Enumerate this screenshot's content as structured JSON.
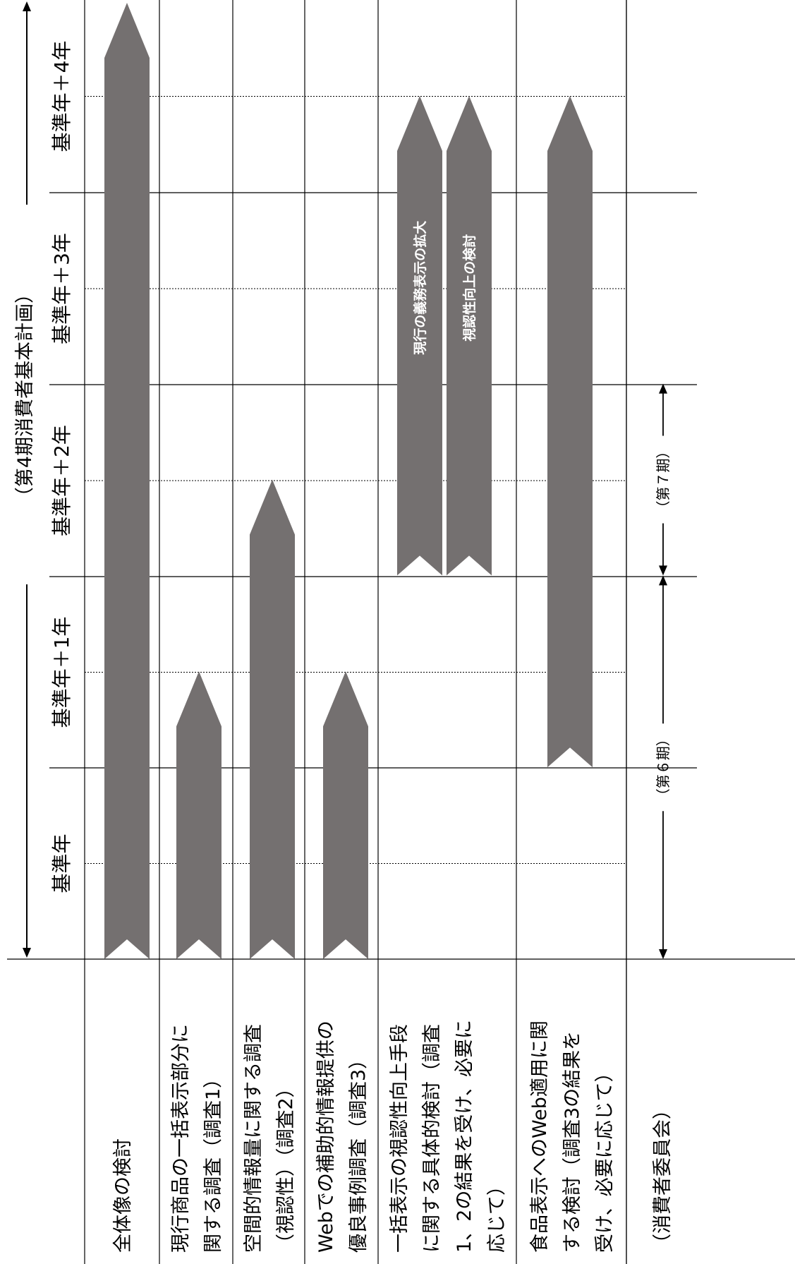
{
  "plan_label": "（第4期消費者基本計画）",
  "years": [
    "基準年",
    "基準年＋1年",
    "基準年＋2年",
    "基準年＋3年",
    "基準年＋4年"
  ],
  "rows": [
    {
      "lines": [
        "全体像の検討"
      ]
    },
    {
      "lines": [
        "現行商品の一括表示部分に",
        "関する調査（調査1）"
      ]
    },
    {
      "lines": [
        "空間的情報量に関する調査",
        "（視認性）（調査2）"
      ]
    },
    {
      "lines": [
        "Webでの補助的情報提供の",
        "優良事例調査（調査3）"
      ]
    },
    {
      "lines": [
        "一括表示の視認性向上手段",
        "に関する具体的検討（調査",
        "1、2の結果を受け、必要に",
        "応じて）"
      ]
    },
    {
      "lines": [
        "食品表示へのWeb適用に関",
        "する検討（調査3の結果を",
        "受け、必要に応じて）"
      ]
    },
    {
      "lines": [
        "（消費者委員会）"
      ]
    }
  ],
  "bars": [
    {
      "row": 0,
      "start_year": 0,
      "end_year": 4.5,
      "label": ""
    },
    {
      "row": 1,
      "start_year": 0,
      "end_year": 1.5,
      "label": ""
    },
    {
      "row": 2,
      "start_year": 0,
      "end_year": 2.5,
      "label": ""
    },
    {
      "row": 3,
      "start_year": 0,
      "end_year": 1.5,
      "label": ""
    },
    {
      "row": 4,
      "start_year": 2,
      "end_year": 4.5,
      "label": "現行の義務表示の拡大"
    },
    {
      "row": 4,
      "start_year": 2,
      "end_year": 4.5,
      "label": "視認性向上の検討"
    },
    {
      "row": 5,
      "start_year": 1,
      "end_year": 4.5,
      "label": ""
    }
  ],
  "periods": [
    {
      "label": "（第６期）",
      "start_year": 0,
      "end_year": 2
    },
    {
      "label": "（第７期）",
      "start_year": 2,
      "end_year": 3
    }
  ],
  "bar_color": "#747070"
}
